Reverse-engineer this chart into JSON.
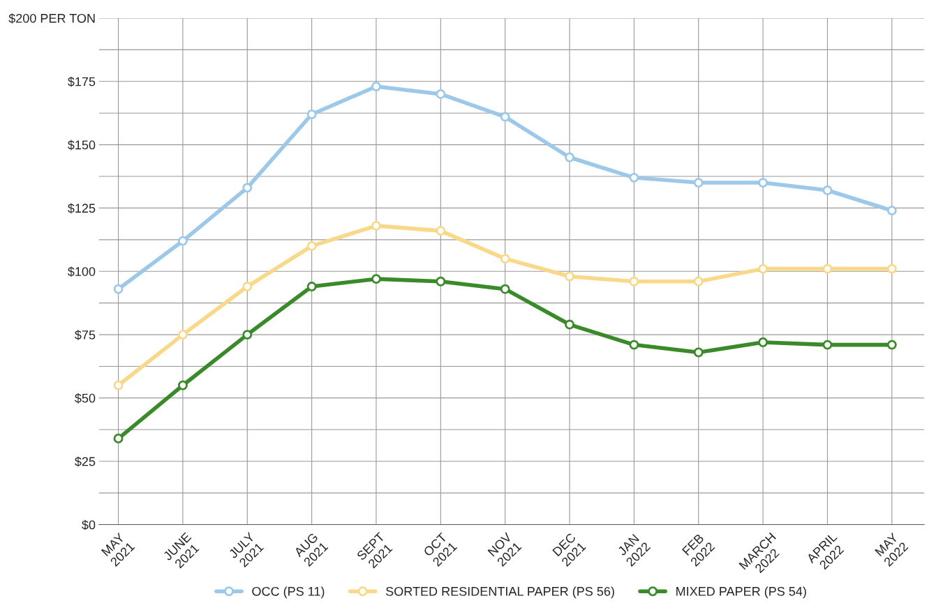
{
  "chart_data": {
    "type": "line",
    "categories": [
      "MAY\n2021",
      "JUNE\n2021",
      "JULY\n2021",
      "AUG\n2021",
      "SEPT\n2021",
      "OCT\n2021",
      "NOV\n2021",
      "DEC\n2021",
      "JAN\n2022",
      "FEB\n2022",
      "MARCH\n2022",
      "APRIL\n2022",
      "MAY\n2022"
    ],
    "series": [
      {
        "name": "OCC (PS 11)",
        "color": "#9cc8ea",
        "values": [
          93,
          112,
          133,
          162,
          173,
          170,
          161,
          145,
          137,
          135,
          135,
          132,
          124
        ]
      },
      {
        "name": "SORTED RESIDENTIAL PAPER (PS 56)",
        "color": "#f8d98a",
        "values": [
          55,
          75,
          94,
          110,
          118,
          116,
          105,
          98,
          96,
          96,
          101,
          101,
          101
        ]
      },
      {
        "name": "MIXED PAPER (PS 54)",
        "color": "#3a8a2a",
        "values": [
          34,
          55,
          75,
          94,
          97,
          96,
          93,
          79,
          71,
          68,
          72,
          71,
          71
        ]
      }
    ],
    "ylim": [
      0,
      200
    ],
    "yticks": [
      {
        "value": 0,
        "label": "$0"
      },
      {
        "value": 12.5,
        "label": null
      },
      {
        "value": 25,
        "label": "$25"
      },
      {
        "value": 37.5,
        "label": null
      },
      {
        "value": 50,
        "label": "$50"
      },
      {
        "value": 62.5,
        "label": null
      },
      {
        "value": 75,
        "label": "$75"
      },
      {
        "value": 87.5,
        "label": null
      },
      {
        "value": 100,
        "label": "$100"
      },
      {
        "value": 112.5,
        "label": null
      },
      {
        "value": 125,
        "label": "$125"
      },
      {
        "value": 137.5,
        "label": null
      },
      {
        "value": 150,
        "label": "$150"
      },
      {
        "value": 162.5,
        "label": null
      },
      {
        "value": 175,
        "label": "$175"
      },
      {
        "value": 187.5,
        "label": null
      },
      {
        "value": 200,
        "label": "$200 PER TON"
      }
    ],
    "grid": true,
    "legend": "bottom",
    "marker": "circle",
    "line_style": "solid"
  }
}
